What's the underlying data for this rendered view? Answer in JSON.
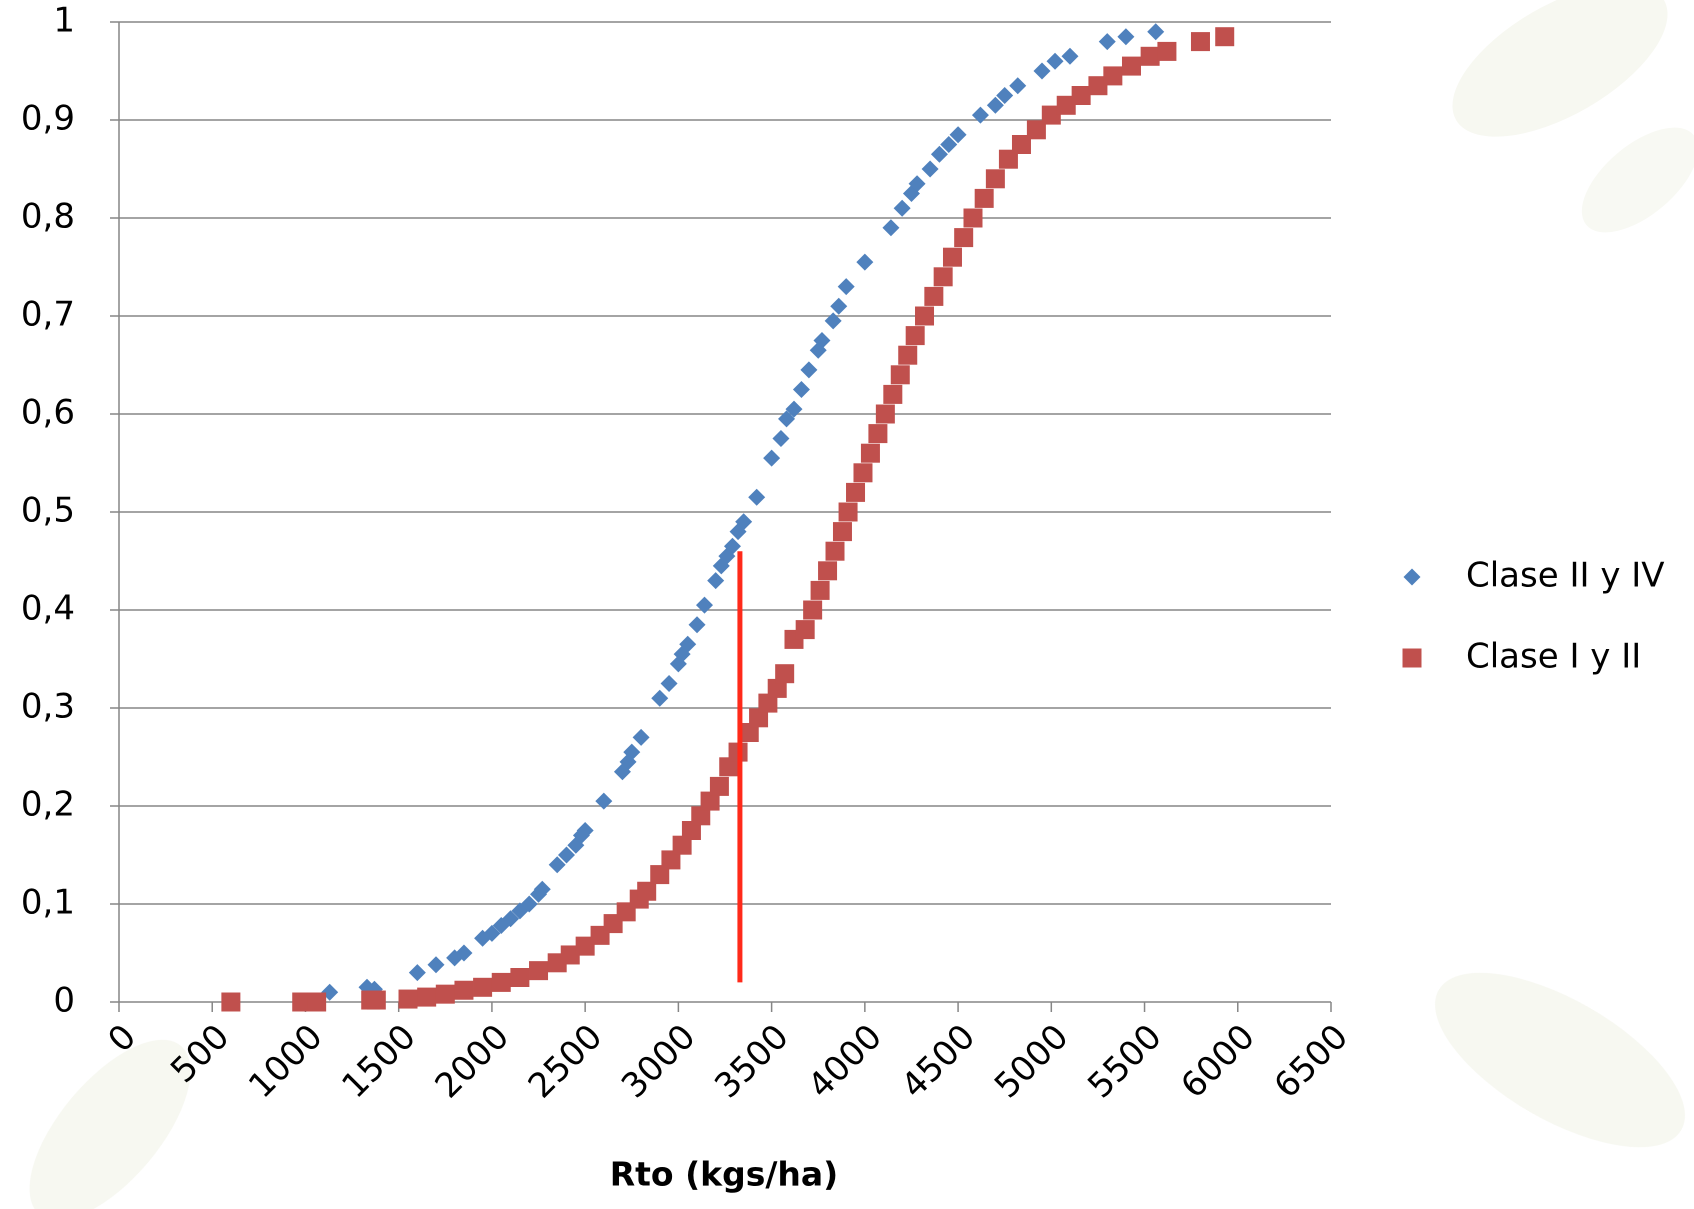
{
  "chart_data": {
    "type": "scatter",
    "x_label": "Rto (kgs/ha)",
    "xlim": [
      0,
      6500
    ],
    "xticks": [
      0,
      500,
      1000,
      1500,
      2000,
      2500,
      3000,
      3500,
      4000,
      4500,
      5000,
      5500,
      6000,
      6500
    ],
    "ylim": [
      0,
      1
    ],
    "yticks": [
      0,
      {
        "value": 0.1,
        "label": "0,1"
      },
      {
        "value": 0.2,
        "label": "0,2"
      },
      {
        "value": 0.3,
        "label": "0,3"
      },
      {
        "value": 0.4,
        "label": "0,4"
      },
      {
        "value": 0.5,
        "label": "0,5"
      },
      {
        "value": 0.6,
        "label": "0,6"
      },
      {
        "value": 0.7,
        "label": "0,7"
      },
      {
        "value": 0.8,
        "label": "0,8"
      },
      {
        "value": 0.9,
        "label": "0,9"
      },
      1
    ],
    "grid": true,
    "legend": "right",
    "series": [
      {
        "name": "Clase II y IV",
        "color": "#4f81bd",
        "marker": "diamond",
        "x": [
          1130,
          1330,
          1370,
          1600,
          1700,
          1800,
          1850,
          1950,
          2000,
          2050,
          2100,
          2150,
          2200,
          2250,
          2270,
          2350,
          2400,
          2450,
          2480,
          2500,
          2600,
          2700,
          2730,
          2750,
          2800,
          2900,
          2950,
          3000,
          3020,
          3050,
          3100,
          3140,
          3200,
          3230,
          3260,
          3290,
          3320,
          3350,
          3420,
          3500,
          3550,
          3580,
          3620,
          3660,
          3700,
          3750,
          3770,
          3830,
          3860,
          3900,
          4000,
          4140,
          4200,
          4250,
          4280,
          4350,
          4400,
          4450,
          4500,
          4620,
          4700,
          4750,
          4820,
          4950,
          5020,
          5100,
          5300,
          5400,
          5560
        ],
        "values": [
          0.01,
          0.015,
          0.013,
          0.03,
          0.038,
          0.045,
          0.05,
          0.065,
          0.07,
          0.078,
          0.085,
          0.093,
          0.1,
          0.11,
          0.115,
          0.14,
          0.15,
          0.16,
          0.17,
          0.175,
          0.205,
          0.235,
          0.245,
          0.255,
          0.27,
          0.31,
          0.325,
          0.345,
          0.355,
          0.365,
          0.385,
          0.405,
          0.43,
          0.445,
          0.455,
          0.465,
          0.48,
          0.49,
          0.515,
          0.555,
          0.575,
          0.595,
          0.605,
          0.625,
          0.645,
          0.665,
          0.675,
          0.695,
          0.71,
          0.73,
          0.755,
          0.79,
          0.81,
          0.825,
          0.835,
          0.85,
          0.865,
          0.875,
          0.885,
          0.905,
          0.915,
          0.925,
          0.935,
          0.95,
          0.96,
          0.965,
          0.98,
          0.985,
          0.99
        ]
      },
      {
        "name": "Clase I y II",
        "color": "#c0504d",
        "marker": "square",
        "x": [
          600,
          980,
          1020,
          1060,
          1350,
          1380,
          1550,
          1650,
          1750,
          1850,
          1950,
          2050,
          2150,
          2250,
          2350,
          2420,
          2500,
          2580,
          2650,
          2720,
          2790,
          2830,
          2900,
          2960,
          3020,
          3070,
          3120,
          3170,
          3220,
          3270,
          3320,
          3380,
          3430,
          3480,
          3530,
          3570,
          3620,
          3680,
          3720,
          3760,
          3800,
          3840,
          3880,
          3910,
          3950,
          3990,
          4030,
          4070,
          4110,
          4150,
          4190,
          4230,
          4270,
          4320,
          4370,
          4420,
          4470,
          4530,
          4580,
          4640,
          4700,
          4770,
          4840,
          4920,
          5000,
          5080,
          5160,
          5250,
          5330,
          5430,
          5530,
          5620,
          5800,
          5930
        ],
        "values": [
          0,
          0,
          0,
          0,
          0.002,
          0.002,
          0.003,
          0.005,
          0.008,
          0.012,
          0.015,
          0.02,
          0.025,
          0.032,
          0.04,
          0.048,
          0.057,
          0.068,
          0.08,
          0.092,
          0.105,
          0.113,
          0.13,
          0.145,
          0.16,
          0.175,
          0.19,
          0.205,
          0.22,
          0.24,
          0.255,
          0.275,
          0.29,
          0.305,
          0.32,
          0.335,
          0.37,
          0.38,
          0.4,
          0.42,
          0.44,
          0.46,
          0.48,
          0.5,
          0.52,
          0.54,
          0.56,
          0.58,
          0.6,
          0.62,
          0.64,
          0.66,
          0.68,
          0.7,
          0.72,
          0.74,
          0.76,
          0.78,
          0.8,
          0.82,
          0.84,
          0.86,
          0.875,
          0.89,
          0.905,
          0.915,
          0.925,
          0.935,
          0.945,
          0.955,
          0.965,
          0.97,
          0.98,
          0.985
        ]
      }
    ],
    "reference_line": {
      "x": 3330,
      "y": [
        0.02,
        0.46
      ],
      "color": "#ff2a1a"
    }
  }
}
